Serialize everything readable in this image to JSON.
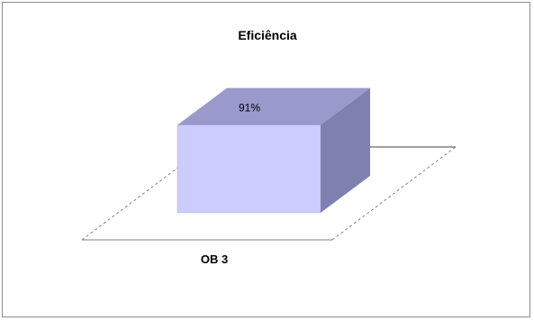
{
  "chart_data": {
    "type": "bar",
    "title": "Eficiência",
    "categories": [
      "OB 3"
    ],
    "values": [
      91
    ],
    "value_labels": [
      "91%"
    ],
    "unit": "%",
    "ylim": [
      0,
      100
    ],
    "three_d": true,
    "grid": false,
    "legend": "none",
    "colors": {
      "bar_front": "#ccccff",
      "bar_top": "#9999cc",
      "bar_side": "#8080b0",
      "floor_line": "#808080",
      "wall_line": "#808080",
      "frame": "#8c8c8c"
    }
  }
}
